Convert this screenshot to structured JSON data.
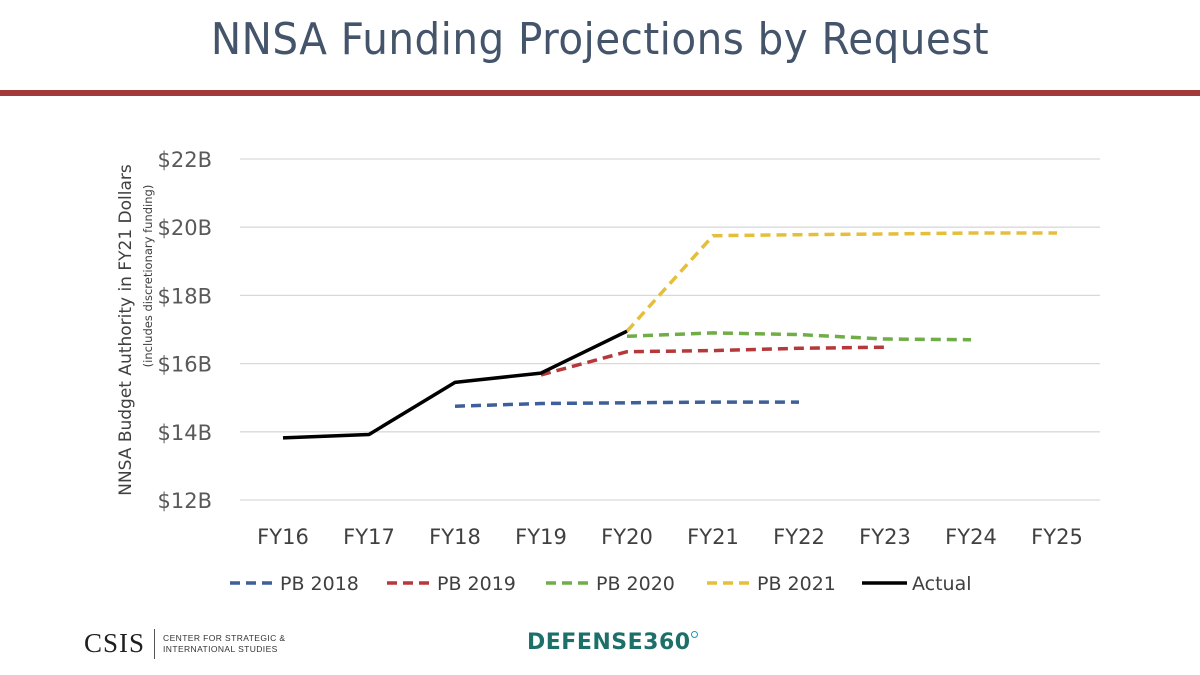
{
  "title": "NNSA Funding Projections by Request",
  "chart_data": {
    "type": "line",
    "title": "NNSA Funding Projections by Request",
    "ylabel": "NNSA Budget Authority in FY21 Dollars",
    "ylabel_sub": "(includes discretionary funding)",
    "xlabel": "",
    "categories": [
      "FY16",
      "FY17",
      "FY18",
      "FY19",
      "FY20",
      "FY21",
      "FY22",
      "FY23",
      "FY24",
      "FY25"
    ],
    "ylim": [
      12,
      22
    ],
    "yticks": [
      12,
      14,
      16,
      18,
      20,
      22
    ],
    "ytick_labels": [
      "$12B",
      "$14B",
      "$16B",
      "$18B",
      "$20B",
      "$22B"
    ],
    "grid": true,
    "legend_position": "bottom",
    "series": [
      {
        "name": "PB 2018",
        "style": "dashed",
        "color": "#3f5f9a",
        "values": [
          null,
          null,
          14.75,
          14.83,
          14.85,
          14.87,
          14.87,
          null,
          null,
          null
        ]
      },
      {
        "name": "PB 2019",
        "style": "dashed",
        "color": "#b5383a",
        "values": [
          null,
          null,
          null,
          15.67,
          16.35,
          16.38,
          16.45,
          16.48,
          null,
          null
        ]
      },
      {
        "name": "PB 2020",
        "style": "dashed",
        "color": "#70ad47",
        "values": [
          null,
          null,
          null,
          null,
          16.8,
          16.9,
          16.85,
          16.72,
          16.7,
          null
        ]
      },
      {
        "name": "PB 2021",
        "style": "dashed",
        "color": "#e6bf3a",
        "values": [
          null,
          null,
          null,
          null,
          16.95,
          19.75,
          19.78,
          19.8,
          19.83,
          19.83
        ]
      },
      {
        "name": "Actual",
        "style": "solid",
        "color": "#000000",
        "values": [
          13.82,
          13.92,
          15.45,
          15.72,
          16.95,
          null,
          null,
          null,
          null,
          null
        ]
      }
    ]
  },
  "footer": {
    "csis_word": "CSIS",
    "csis_line1": "CENTER FOR STRATEGIC &",
    "csis_line2": "INTERNATIONAL STUDIES",
    "defense360": "DEFENSE360"
  }
}
